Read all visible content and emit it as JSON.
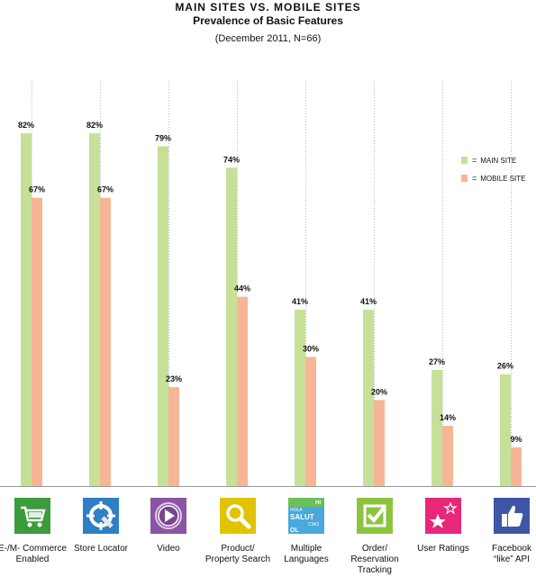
{
  "header": {
    "title": "MAIN SITES VS. MOBILE SITES",
    "subtitle": "Prevalence of Basic Features",
    "note": "(December 2011, N=66)"
  },
  "legend": {
    "main_label": "MAIN SITE",
    "mobile_label": "MOBILE SITE",
    "equals": "="
  },
  "colors": {
    "main": "#c6e197",
    "mobile": "#f7b597",
    "grid": "#bbbbbb"
  },
  "chart_data": {
    "type": "bar",
    "title": "MAIN SITES VS. MOBILE SITES",
    "subtitle": "Prevalence of Basic Features",
    "categories": [
      "E-/M- Commerce Enabled",
      "Store Locator",
      "Video",
      "Product/ Property Search",
      "Multiple Languages",
      "Order/ Reservation Tracking",
      "User Ratings",
      "Facebook “like” API"
    ],
    "series": [
      {
        "name": "MAIN SITE",
        "values": [
          82,
          82,
          79,
          74,
          41,
          41,
          27,
          26
        ],
        "labels": [
          "82%",
          "82%",
          "79%",
          "74%",
          "41%",
          "41%",
          "27%",
          "26%"
        ]
      },
      {
        "name": "MOBILE SITE",
        "values": [
          67,
          67,
          23,
          44,
          30,
          20,
          14,
          9
        ],
        "labels": [
          "67%",
          "67%",
          "23%",
          "44%",
          "30%",
          "20%",
          "14%",
          "9%"
        ]
      }
    ],
    "ylim": [
      0,
      100
    ],
    "grid": true,
    "legend_position": "right"
  },
  "categories": [
    {
      "line1": "E-/M- Commerce",
      "line2": "Enabled",
      "line3": "",
      "icon": "shopping-cart-icon",
      "icon_color": "#3c9b3c"
    },
    {
      "line1": "Store Locator",
      "line2": "",
      "line3": "",
      "icon": "store-locator-icon",
      "icon_color": "#2f7fc4"
    },
    {
      "line1": "Video",
      "line2": "",
      "line3": "",
      "icon": "video-play-icon",
      "icon_color": "#8c54a4"
    },
    {
      "line1": "Product/",
      "line2": "Property Search",
      "line3": "",
      "icon": "search-magnifier-icon",
      "icon_color": "#e2c300"
    },
    {
      "line1": "Multiple",
      "line2": "Languages",
      "line3": "",
      "icon": "languages-icon",
      "icon_color": "#4aa8dc",
      "icon_texts": [
        "HI",
        "HOLA",
        "SALUT",
        "CIAO",
        "OL"
      ]
    },
    {
      "line1": "Order/",
      "line2": "Reservation",
      "line3": "Tracking",
      "icon": "checkbox-icon",
      "icon_color": "#8dc43f"
    },
    {
      "line1": "User Ratings",
      "line2": "",
      "line3": "",
      "icon": "stars-icon",
      "icon_color": "#e8267a"
    },
    {
      "line1": "Facebook",
      "line2": "“like” API",
      "line3": "",
      "icon": "thumbs-up-icon",
      "icon_color": "#3f56a6"
    }
  ]
}
